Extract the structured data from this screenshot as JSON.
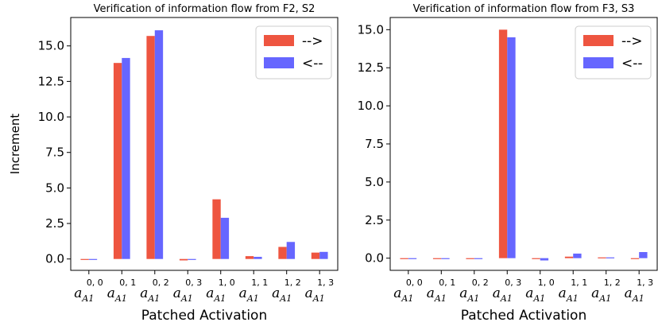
{
  "chart_data": [
    {
      "type": "bar",
      "title": "Verification of information flow from F2, S2",
      "xlabel": "Patched Activation",
      "ylabel": "Increment",
      "ylim": [
        -0.8,
        17.0
      ],
      "yticks": [
        "0.0",
        "2.5",
        "5.0",
        "7.5",
        "10.0",
        "12.5",
        "15.0"
      ],
      "categories": [
        {
          "base": "a",
          "sub": "A1",
          "sup": "0, 0"
        },
        {
          "base": "a",
          "sub": "A1",
          "sup": "0, 1"
        },
        {
          "base": "a",
          "sub": "A1",
          "sup": "0, 2"
        },
        {
          "base": "a",
          "sub": "A1",
          "sup": "0, 3"
        },
        {
          "base": "a",
          "sub": "A1",
          "sup": "1, 0"
        },
        {
          "base": "a",
          "sub": "A1",
          "sup": "1, 1"
        },
        {
          "base": "a",
          "sub": "A1",
          "sup": "1, 2"
        },
        {
          "base": "a",
          "sub": "A1",
          "sup": "1, 3"
        }
      ],
      "series": [
        {
          "name": "-->",
          "color": "#ee5540",
          "values": [
            0.0,
            13.8,
            15.7,
            -0.1,
            4.2,
            0.2,
            0.85,
            0.45
          ]
        },
        {
          "name": "<--",
          "color": "#6666ff",
          "values": [
            -0.05,
            14.15,
            16.1,
            0.0,
            2.9,
            0.15,
            1.2,
            0.5
          ]
        }
      ],
      "legend_position": "top-right",
      "grid": false
    },
    {
      "type": "bar",
      "title": "Verification of information flow from F3, S3",
      "xlabel": "Patched Activation",
      "ylabel": "",
      "ylim": [
        -0.8,
        15.8
      ],
      "yticks": [
        "0.0",
        "2.5",
        "5.0",
        "7.5",
        "10.0",
        "12.5",
        "15.0"
      ],
      "categories": [
        {
          "base": "a",
          "sub": "A1",
          "sup": "0, 0"
        },
        {
          "base": "a",
          "sub": "A1",
          "sup": "0, 1"
        },
        {
          "base": "a",
          "sub": "A1",
          "sup": "0, 2"
        },
        {
          "base": "a",
          "sub": "A1",
          "sup": "0, 3"
        },
        {
          "base": "a",
          "sub": "A1",
          "sup": "1, 0"
        },
        {
          "base": "a",
          "sub": "A1",
          "sup": "1, 1"
        },
        {
          "base": "a",
          "sub": "A1",
          "sup": "1, 2"
        },
        {
          "base": "a",
          "sub": "A1",
          "sup": "1, 3"
        }
      ],
      "series": [
        {
          "name": "-->",
          "color": "#ee5540",
          "values": [
            0.0,
            0.0,
            0.0,
            15.0,
            -0.05,
            0.1,
            0.05,
            0.0
          ]
        },
        {
          "name": "<--",
          "color": "#6666ff",
          "values": [
            0.0,
            0.0,
            0.0,
            14.5,
            -0.15,
            0.3,
            0.05,
            0.4
          ]
        }
      ],
      "legend_position": "top-right",
      "grid": false
    }
  ]
}
